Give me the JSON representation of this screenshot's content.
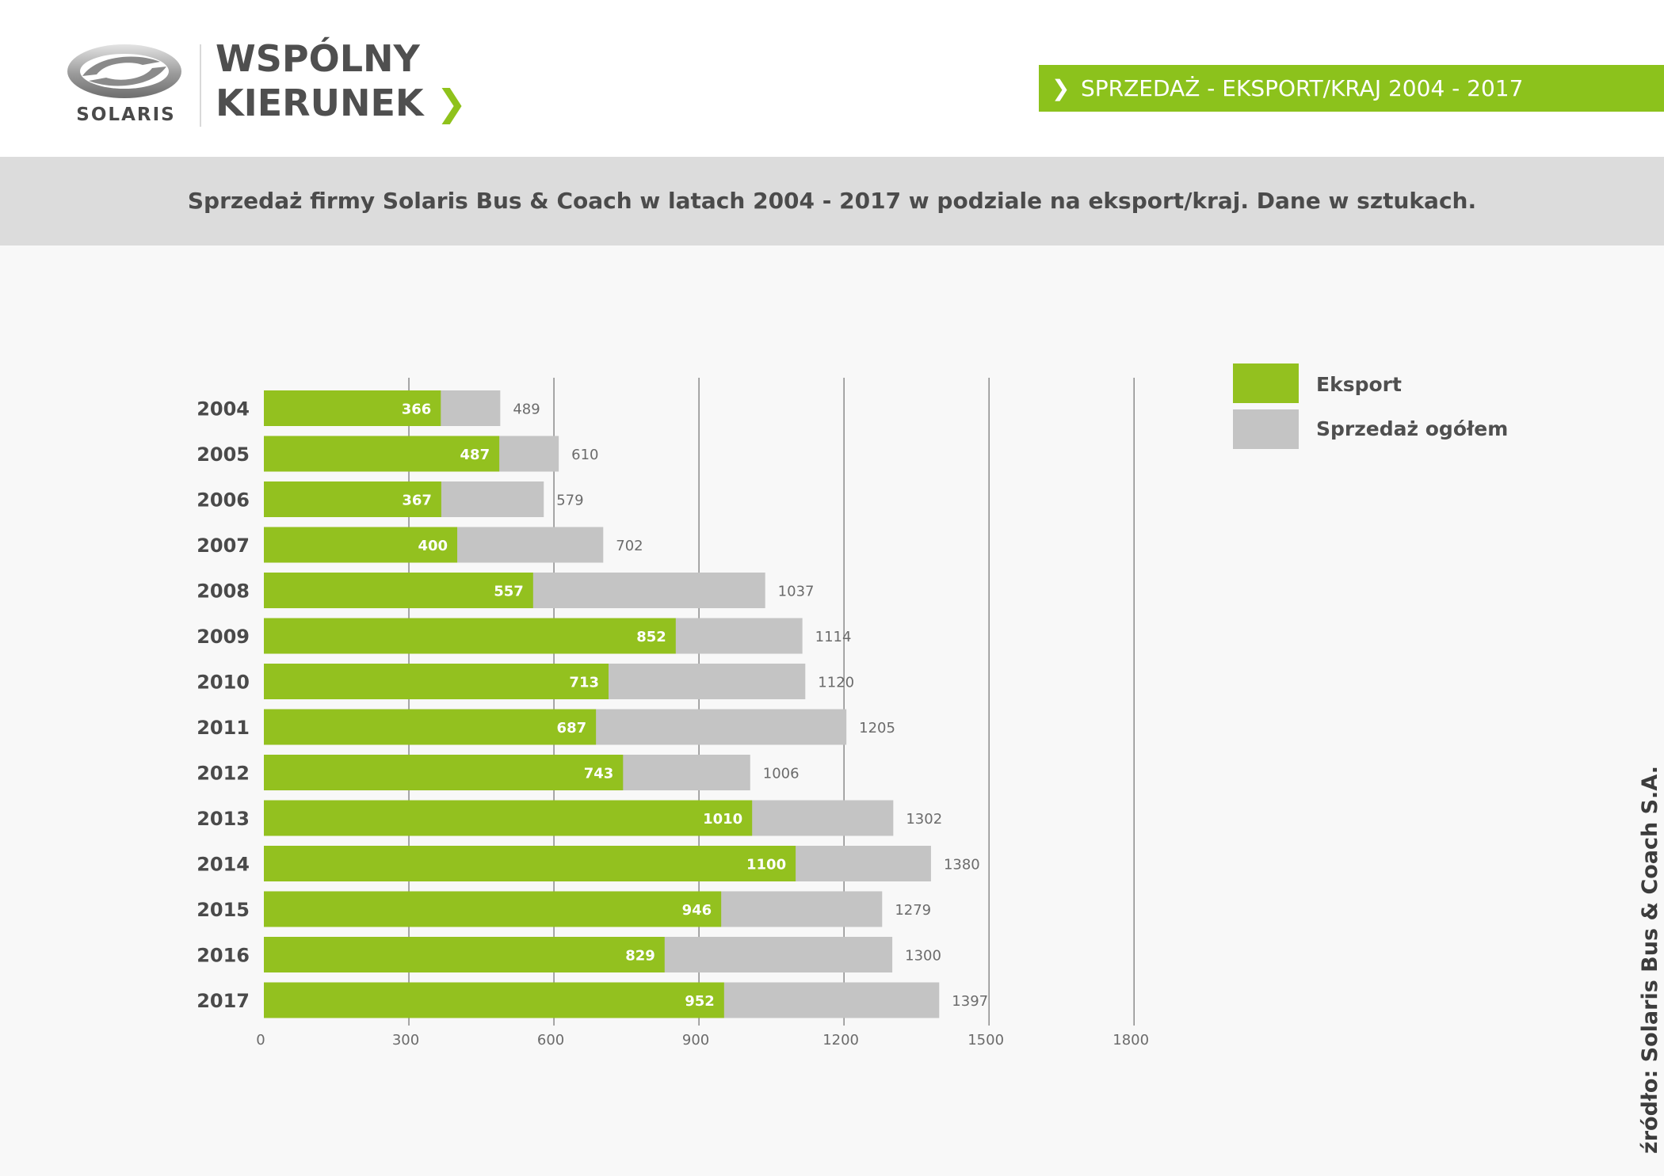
{
  "header": {
    "logo_text": "SOLARIS",
    "brand_line1": "WSPÓLNY",
    "brand_line2": "KIERUNEK",
    "brand_arrow": "❯",
    "section_chevron": "❯",
    "section_title": "SPRZEDAŻ - EKSPORT/KRAJ 2004 - 2017"
  },
  "subtitle": "Sprzedaż firmy Solaris Bus & Coach w latach 2004 - 2017 w podziale na eksport/kraj. Dane w sztukach.",
  "source": "źródło:  Solaris Bus & Coach S.A.",
  "colors": {
    "accent_green": "#8cc21c",
    "bar_green": "#93c11f",
    "bar_grey": "#c4c4c4",
    "grid": "#7a7a7a"
  },
  "chart_data": {
    "type": "bar",
    "orientation": "horizontal",
    "categories": [
      "2004",
      "2005",
      "2006",
      "2007",
      "2008",
      "2009",
      "2010",
      "2011",
      "2012",
      "2013",
      "2014",
      "2015",
      "2016",
      "2017"
    ],
    "series": [
      {
        "name": "Eksport",
        "values": [
          366,
          487,
          367,
          400,
          557,
          852,
          713,
          687,
          743,
          1010,
          1100,
          946,
          829,
          952
        ]
      },
      {
        "name": "Sprzedaż ogółem",
        "values": [
          489,
          610,
          579,
          702,
          1037,
          1114,
          1120,
          1205,
          1006,
          1302,
          1380,
          1279,
          1300,
          1397
        ]
      }
    ],
    "xlim": [
      0,
      1800
    ],
    "xticks": [
      "0",
      "300",
      "600",
      "900",
      "1200",
      "1500",
      "1800"
    ],
    "grid": true,
    "legend": "top-right"
  }
}
